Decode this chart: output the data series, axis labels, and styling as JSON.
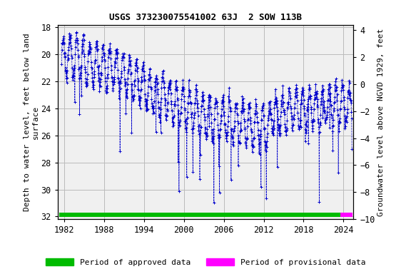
{
  "title": "USGS 373230075541002 63J  2 SOW 113B",
  "ylabel_left": "Depth to water level, feet below land\nsurface",
  "ylabel_right": "Groundwater level above NGVD 1929, feet",
  "xlim": [
    1981.0,
    2025.5
  ],
  "ylim_left": [
    32.2,
    17.8
  ],
  "ylim_right": [
    -10.0,
    4.4
  ],
  "xticks": [
    1982,
    1988,
    1994,
    2000,
    2006,
    2012,
    2018,
    2024
  ],
  "yticks_left": [
    18,
    20,
    22,
    24,
    26,
    28,
    30,
    32
  ],
  "yticks_right": [
    4,
    2,
    0,
    -2,
    -4,
    -6,
    -8,
    -10
  ],
  "line_color": "#0000CC",
  "marker": "+",
  "linestyle": "--",
  "approved_color": "#00BB00",
  "provisional_color": "#FF00FF",
  "bg_color": "#FFFFFF",
  "plot_bg_color": "#F0F0F0",
  "grid_color": "#BBBBBB",
  "approved_start": 1981.3,
  "approved_end": 2023.5,
  "provisional_start": 2023.5,
  "provisional_end": 2025.4,
  "legend_approved": "Period of approved data",
  "legend_provisional": "Period of provisional data",
  "title_fontsize": 9,
  "axis_label_fontsize": 8,
  "tick_fontsize": 8.5,
  "legend_fontsize": 8
}
